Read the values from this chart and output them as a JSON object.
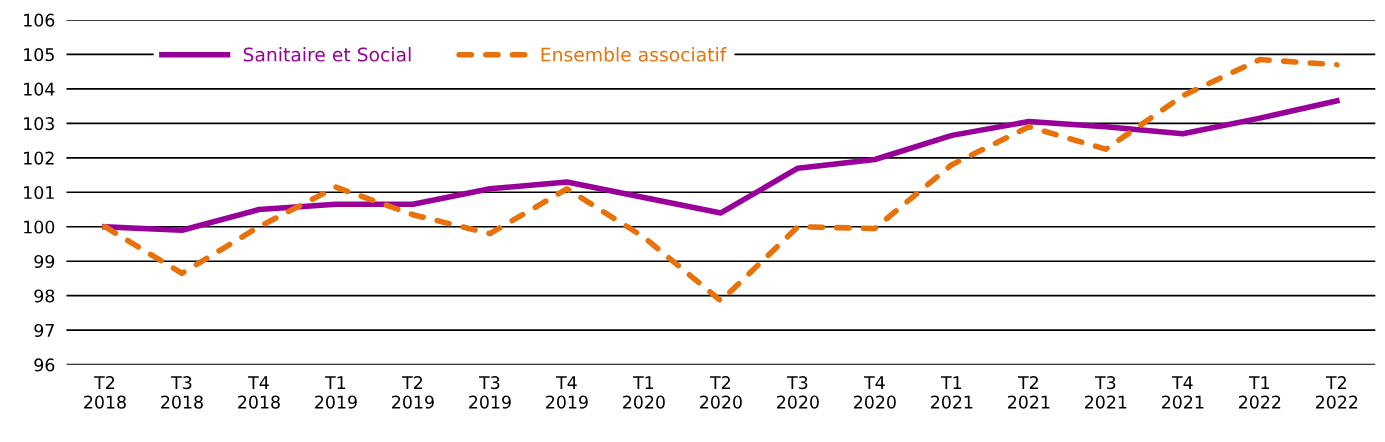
{
  "chart_data": {
    "type": "line",
    "categories": [
      "T2\n2018",
      "T3\n2018",
      "T4\n2018",
      "T1\n2019",
      "T2\n2019",
      "T3\n2019",
      "T4\n2019",
      "T1\n2020",
      "T2\n2020",
      "T3\n2020",
      "T4\n2020",
      "T1\n2021",
      "T2\n2021",
      "T3\n2021",
      "T4\n2021",
      "T1\n2022",
      "T2\n2022"
    ],
    "series": [
      {
        "name": "Sanitaire et Social",
        "color": "#990099",
        "line_style": "solid",
        "values": [
          100.0,
          99.9,
          100.5,
          100.65,
          100.65,
          101.1,
          101.3,
          100.85,
          100.4,
          101.7,
          101.95,
          102.65,
          103.05,
          102.9,
          102.7,
          103.15,
          103.65
        ]
      },
      {
        "name": "Ensemble associatif",
        "color": "#e8710a",
        "line_style": "dashed",
        "values": [
          100.0,
          98.65,
          100.0,
          101.15,
          100.35,
          99.8,
          101.1,
          99.7,
          97.85,
          100.0,
          99.95,
          101.8,
          102.9,
          102.25,
          103.8,
          104.85,
          104.7
        ]
      }
    ],
    "ylim": [
      96,
      106
    ],
    "yticks": [
      96,
      97,
      98,
      99,
      100,
      101,
      102,
      103,
      104,
      105,
      106
    ],
    "grid": "y",
    "legend": "top left",
    "marker": "none"
  }
}
